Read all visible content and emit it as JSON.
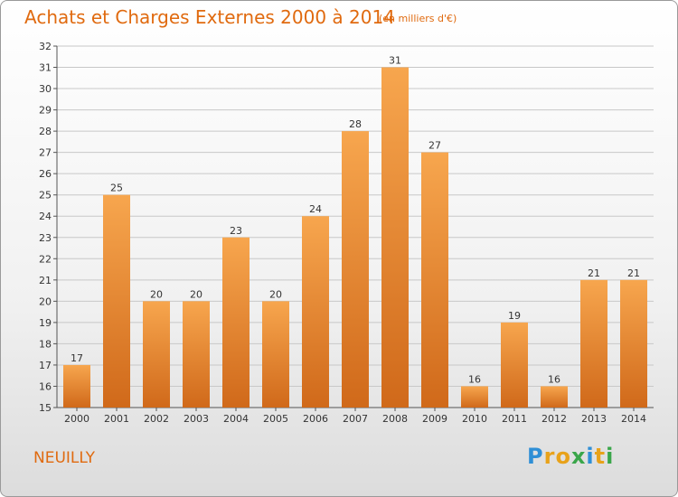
{
  "title": "Achats et Charges Externes 2000 à 2014",
  "subtitle": "(en milliers d'€)",
  "commune": "NEUILLY",
  "logo": {
    "text": "Proxiti",
    "letters": [
      {
        "ch": "P",
        "color": "#2f8fd6"
      },
      {
        "ch": "r",
        "color": "#e8a21a"
      },
      {
        "ch": "o",
        "color": "#e8a21a"
      },
      {
        "ch": "x",
        "color": "#3aa64a"
      },
      {
        "ch": "i",
        "color": "#2f8fd6"
      },
      {
        "ch": "t",
        "color": "#e8a21a"
      },
      {
        "ch": "i",
        "color": "#3aa64a"
      }
    ]
  },
  "colors": {
    "accent": "#e06a0f",
    "bar_light": "#f6a24a",
    "bar_dark": "#d06a1a",
    "grid": "#c8c8c8"
  },
  "chart_data": {
    "type": "bar",
    "title": "Achats et Charges Externes 2000 à 2014",
    "subtitle": "(en milliers d'€)",
    "categories": [
      "2000",
      "2001",
      "2002",
      "2003",
      "2004",
      "2005",
      "2006",
      "2007",
      "2008",
      "2009",
      "2010",
      "2011",
      "2012",
      "2013",
      "2014"
    ],
    "values": [
      17,
      25,
      20,
      20,
      23,
      20,
      24,
      28,
      31,
      27,
      16,
      19,
      16,
      21,
      21
    ],
    "ylim": [
      15,
      32
    ],
    "yticks": [
      15,
      16,
      17,
      18,
      19,
      20,
      21,
      22,
      23,
      24,
      25,
      26,
      27,
      28,
      29,
      30,
      31,
      32
    ],
    "grid": true,
    "data_labels": true
  }
}
